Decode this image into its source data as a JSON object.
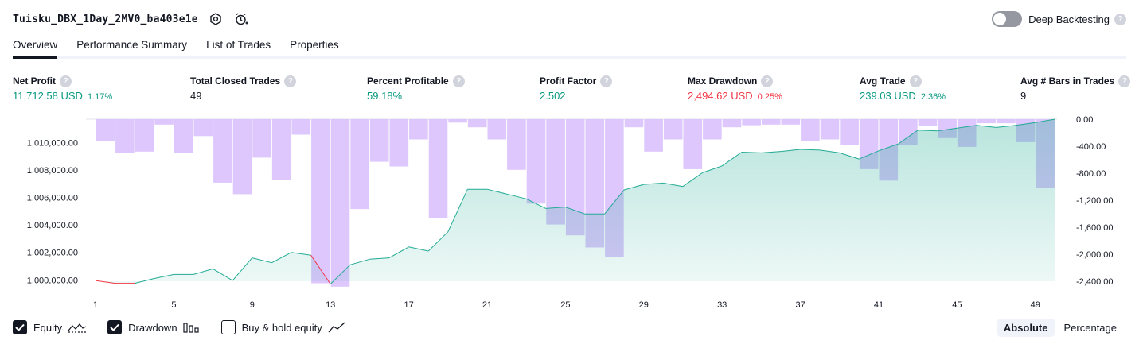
{
  "header": {
    "title": "Tuisku_DBX_1Day_2MV0_ba403e1e",
    "settings_icon": "gear-icon",
    "alert_icon": "alarm-clock-plus-icon",
    "deep_backtesting_label": "Deep Backtesting",
    "deep_backtesting_enabled": false,
    "help_glyph": "?"
  },
  "tabs": [
    {
      "label": "Overview",
      "active": true
    },
    {
      "label": "Performance Summary",
      "active": false
    },
    {
      "label": "List of Trades",
      "active": false
    },
    {
      "label": "Properties",
      "active": false
    }
  ],
  "metrics": [
    {
      "label": "Net Profit",
      "value": "11,712.58 USD",
      "percent": "1.17%",
      "color": "green"
    },
    {
      "label": "Total Closed Trades",
      "value": "49",
      "percent": "",
      "color": "dark"
    },
    {
      "label": "Percent Profitable",
      "value": "59.18%",
      "percent": "",
      "color": "green"
    },
    {
      "label": "Profit Factor",
      "value": "2.502",
      "percent": "",
      "color": "green"
    },
    {
      "label": "Max Drawdown",
      "value": "2,494.62 USD",
      "percent": "0.25%",
      "color": "red"
    },
    {
      "label": "Avg Trade",
      "value": "239.03 USD",
      "percent": "2.36%",
      "color": "green"
    },
    {
      "label": "Avg # Bars in Trades",
      "value": "9",
      "percent": "",
      "color": "dark"
    }
  ],
  "colors": {
    "equity_line": "#22ab94",
    "equity_line_negative": "#f23645",
    "equity_fill": "#22ab94",
    "drawdown_bar": "#d7bdfb",
    "text_green": "#089981",
    "text_red": "#f23645"
  },
  "chart_data": {
    "type": "area",
    "x_ticks": [
      "1",
      "5",
      "9",
      "13",
      "17",
      "21",
      "25",
      "29",
      "33",
      "37",
      "41",
      "45",
      "49"
    ],
    "x_range": [
      1,
      50
    ],
    "equity_axis": {
      "ticks": [
        "1,000,000.00",
        "1,002,000.00",
        "1,004,000.00",
        "1,006,000.00",
        "1,008,000.00",
        "1,010,000.00"
      ],
      "range": [
        999900,
        1011700
      ]
    },
    "drawdown_axis": {
      "ticks": [
        "0.00",
        "-400.00",
        "-800.00",
        "-1,200.00",
        "-1,600.00",
        "-2,000.00",
        "-2,400.00"
      ],
      "range": [
        0,
        -2400
      ]
    },
    "series": [
      {
        "name": "Equity",
        "x": [
          1,
          2,
          3,
          4,
          5,
          6,
          7,
          8,
          9,
          10,
          11,
          12,
          13,
          14,
          15,
          16,
          17,
          18,
          19,
          20,
          21,
          22,
          23,
          24,
          25,
          26,
          27,
          28,
          29,
          30,
          31,
          32,
          33,
          34,
          35,
          36,
          37,
          38,
          39,
          40,
          41,
          42,
          43,
          44,
          45,
          46,
          47,
          48,
          49,
          50
        ],
        "values": [
          999950,
          999750,
          999750,
          1000100,
          1000400,
          1000400,
          1000800,
          999950,
          1001600,
          1001250,
          1002000,
          1001800,
          999700,
          1001100,
          1001500,
          1001600,
          1002400,
          1002100,
          1003500,
          1006600,
          1006600,
          1006250,
          1005900,
          1005200,
          1005300,
          1004800,
          1004800,
          1006550,
          1006950,
          1007050,
          1006800,
          1007800,
          1008300,
          1009300,
          1009250,
          1009350,
          1009500,
          1009450,
          1009250,
          1008800,
          1009400,
          1009900,
          1010900,
          1010850,
          1011050,
          1011250,
          1011100,
          1011250,
          1011450,
          1011700
        ]
      },
      {
        "name": "Drawdown",
        "x": [
          2,
          3,
          4,
          5,
          6,
          7,
          8,
          9,
          10,
          11,
          12,
          13,
          14,
          15,
          16,
          17,
          18,
          19,
          20,
          21,
          22,
          23,
          24,
          25,
          26,
          27,
          28,
          29,
          30,
          31,
          32,
          33,
          34,
          35,
          36,
          37,
          38,
          39,
          40,
          41,
          42,
          43,
          44,
          45,
          46,
          47,
          48,
          49,
          50
        ],
        "values": [
          -330,
          -500,
          -480,
          -80,
          -500,
          -250,
          -940,
          -1110,
          -570,
          -900,
          -230,
          -2430,
          -2480,
          -1330,
          -630,
          -700,
          -300,
          -1460,
          -50,
          -120,
          -300,
          -750,
          -1250,
          -1560,
          -1720,
          -1900,
          -2040,
          -120,
          -480,
          -300,
          -740,
          -300,
          -120,
          -90,
          -80,
          -80,
          -320,
          -300,
          -380,
          -740,
          -910,
          -380,
          -100,
          -280,
          -410,
          -60,
          -60,
          -340,
          -1020
        ]
      }
    ],
    "negative_equity_points": [
      1,
      2,
      3,
      13
    ]
  },
  "legend": [
    {
      "label": "Equity",
      "checked": true,
      "icon": "equity-line-icon"
    },
    {
      "label": "Drawdown",
      "checked": true,
      "icon": "drawdown-bars-icon"
    },
    {
      "label": "Buy & hold equity",
      "checked": false,
      "icon": "buy-hold-line-icon"
    }
  ],
  "view_mode": {
    "options": [
      "Absolute",
      "Percentage"
    ],
    "selected": "Absolute"
  }
}
